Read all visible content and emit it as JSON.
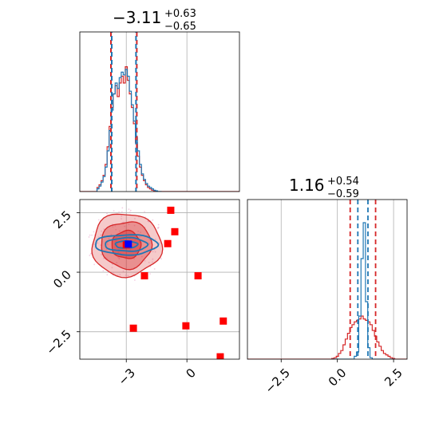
{
  "chart_data": {
    "type": "corner",
    "colors": {
      "red": "#d62728",
      "blue": "#1f77b4",
      "truth_red": "#ff0000",
      "truth_blue": "#0000ff",
      "grid": "#b0b0b0"
    },
    "param1": {
      "title": {
        "main": "−3.11",
        "sup": "+0.63",
        "sub": "−0.65"
      },
      "median": -3.11,
      "quantiles_red": [
        -3.76,
        -2.48
      ],
      "quantiles_blue": [
        -3.72,
        -2.52
      ],
      "xlim": [
        -5.3,
        2.6
      ],
      "ticks": [
        -3,
        0
      ],
      "tick_labels": [
        "−3",
        "0"
      ],
      "hist_x": [
        -4.4,
        -4.3,
        -4.2,
        -4.1,
        -4.0,
        -3.9,
        -3.8,
        -3.7,
        -3.6,
        -3.5,
        -3.4,
        -3.3,
        -3.2,
        -3.1,
        -3.0,
        -2.9,
        -2.8,
        -2.7,
        -2.6,
        -2.5,
        -2.4,
        -2.3,
        -2.2,
        -2.1,
        -2.0,
        -1.9,
        -1.8,
        -1.7,
        -1.6,
        -1.5,
        -1.4,
        -1.3
      ],
      "hist_red": [
        0.03,
        0.05,
        0.08,
        0.12,
        0.2,
        0.33,
        0.48,
        0.62,
        0.72,
        0.78,
        0.7,
        0.8,
        0.85,
        0.8,
        0.92,
        0.82,
        0.72,
        0.62,
        0.5,
        0.36,
        0.26,
        0.18,
        0.12,
        0.08,
        0.05,
        0.03,
        0.02,
        0.01,
        0.005,
        0,
        0,
        0
      ],
      "hist_blue": [
        0.02,
        0.04,
        0.07,
        0.11,
        0.18,
        0.3,
        0.45,
        0.6,
        0.72,
        0.8,
        0.76,
        0.84,
        0.88,
        0.86,
        0.9,
        0.85,
        0.74,
        0.64,
        0.52,
        0.4,
        0.3,
        0.2,
        0.13,
        0.09,
        0.06,
        0.04,
        0.03,
        0.02,
        0.01,
        0.005,
        0,
        0
      ]
    },
    "param2": {
      "title": {
        "main": "1.16",
        "sup": "+0.54",
        "sub": "−0.59"
      },
      "median": 1.16,
      "quantiles_red": [
        0.57,
        1.7
      ],
      "quantiles_blue": [
        0.91,
        1.36
      ],
      "xlim": [
        -4.0,
        3.1
      ],
      "ticks": [
        -2.5,
        0.0,
        2.5
      ],
      "tick_labels": [
        "−2.5",
        "0.0",
        "2.5"
      ],
      "hist_x": [
        -0.2,
        -0.1,
        0.0,
        0.1,
        0.2,
        0.3,
        0.4,
        0.5,
        0.6,
        0.7,
        0.8,
        0.9,
        1.0,
        1.1,
        1.2,
        1.3,
        1.4,
        1.5,
        1.6,
        1.7,
        1.8,
        1.9,
        2.0,
        2.1,
        2.2,
        2.3,
        2.4,
        2.5
      ],
      "hist_red": [
        0.005,
        0.01,
        0.02,
        0.04,
        0.06,
        0.1,
        0.14,
        0.18,
        0.22,
        0.24,
        0.26,
        0.27,
        0.28,
        0.3,
        0.28,
        0.27,
        0.26,
        0.24,
        0.2,
        0.16,
        0.12,
        0.09,
        0.06,
        0.04,
        0.03,
        0.02,
        0.01,
        0.005
      ],
      "hist_blue": [
        0,
        0,
        0,
        0,
        0,
        0,
        0,
        0,
        0,
        0,
        0.02,
        0.05,
        0.3,
        0.7,
        0.95,
        0.4,
        0.08,
        0.01,
        0,
        0,
        0,
        0,
        0,
        0,
        0,
        0,
        0,
        0
      ]
    },
    "joint": {
      "xlim": [
        -5.3,
        2.6
      ],
      "ylim": [
        -3.65,
        3.05
      ],
      "xticks": [
        -3,
        0
      ],
      "xtick_labels": [
        "−3",
        "0"
      ],
      "yticks": [
        -2.5,
        0.0,
        2.5
      ],
      "ytick_labels": [
        "−2.5",
        "0.0",
        "2.5"
      ],
      "red_contours": [
        {
          "cx": -3.0,
          "cy": 1.15,
          "rx": 1.72,
          "ry": 1.32,
          "alpha": 0.45
        },
        {
          "cx": -3.0,
          "cy": 1.15,
          "rx": 1.25,
          "ry": 0.98,
          "alpha": 0.65
        },
        {
          "cx": -3.0,
          "cy": 1.15,
          "rx": 0.72,
          "ry": 0.58,
          "alpha": 0.85
        }
      ],
      "blue_contours": [
        {
          "cx": -3.0,
          "cy": 1.16,
          "rx": 1.55,
          "ry": 0.42
        },
        {
          "cx": -3.0,
          "cy": 1.16,
          "rx": 1.05,
          "ry": 0.28
        },
        {
          "cx": -3.0,
          "cy": 1.16,
          "rx": 0.55,
          "ry": 0.15
        }
      ],
      "red_points": [
        {
          "x": -0.8,
          "y": 2.6
        },
        {
          "x": -0.6,
          "y": 1.7
        },
        {
          "x": -0.95,
          "y": 1.2
        },
        {
          "x": -2.1,
          "y": -0.15
        },
        {
          "x": 0.55,
          "y": -0.15
        },
        {
          "x": -2.65,
          "y": -2.35
        },
        {
          "x": -0.05,
          "y": -2.25
        },
        {
          "x": 1.8,
          "y": -2.05
        },
        {
          "x": 1.65,
          "y": -3.55
        }
      ],
      "center_red": {
        "x": -3.0,
        "y": 1.15
      },
      "center_blue": {
        "x": -2.9,
        "y": 1.18
      }
    }
  }
}
